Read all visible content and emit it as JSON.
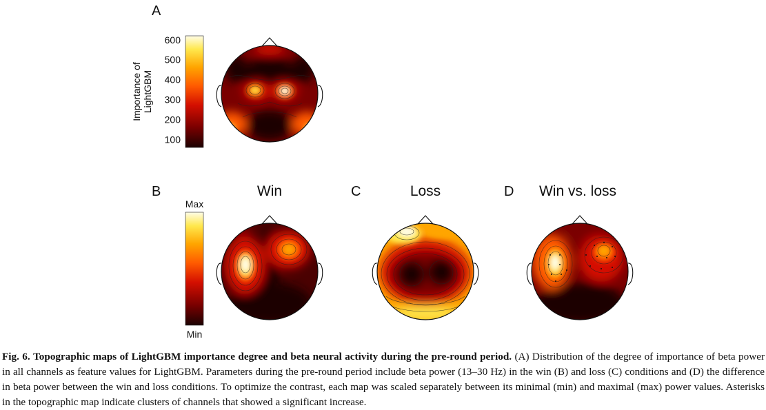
{
  "panels": {
    "a": {
      "letter": "A",
      "colorbar_label_line1": "Importance of",
      "colorbar_label_line2": "LightGBM",
      "ticks": [
        "600",
        "500",
        "400",
        "300",
        "200",
        "100"
      ],
      "colorbar_range": [
        60,
        620
      ]
    },
    "b": {
      "letter": "B",
      "title": "Win"
    },
    "c": {
      "letter": "C",
      "title": "Loss"
    },
    "d": {
      "letter": "D",
      "title": "Win vs. loss"
    },
    "colorbar_bottom": {
      "max_label": "Max",
      "min_label": "Min"
    }
  },
  "caption": {
    "fig_label": "Fig. 6.",
    "bold_title": "Topographic maps of LightGBM importance degree and beta neural activity during the pre-round period.",
    "body": "(A) Distribution of the degree of importance of beta power in all channels as feature values for LightGBM. Parameters during the pre-round period include beta power (13–30 Hz) in the win (B) and loss (C) conditions and (D) the difference in beta power between the win and loss conditions. To optimize the contrast, each map was scaled separately between its minimal (min) and maximal (max) power values. Asterisks in the topographic map indicate clusters of channels that showed a significant increase."
  },
  "colors": {
    "hot_0": "#1c0202",
    "hot_1": "#7a0000",
    "hot_2": "#d40f00",
    "hot_3": "#ff5a00",
    "hot_4": "#ffa500",
    "hot_5": "#ffe84d",
    "hot_6": "#fffde8"
  }
}
